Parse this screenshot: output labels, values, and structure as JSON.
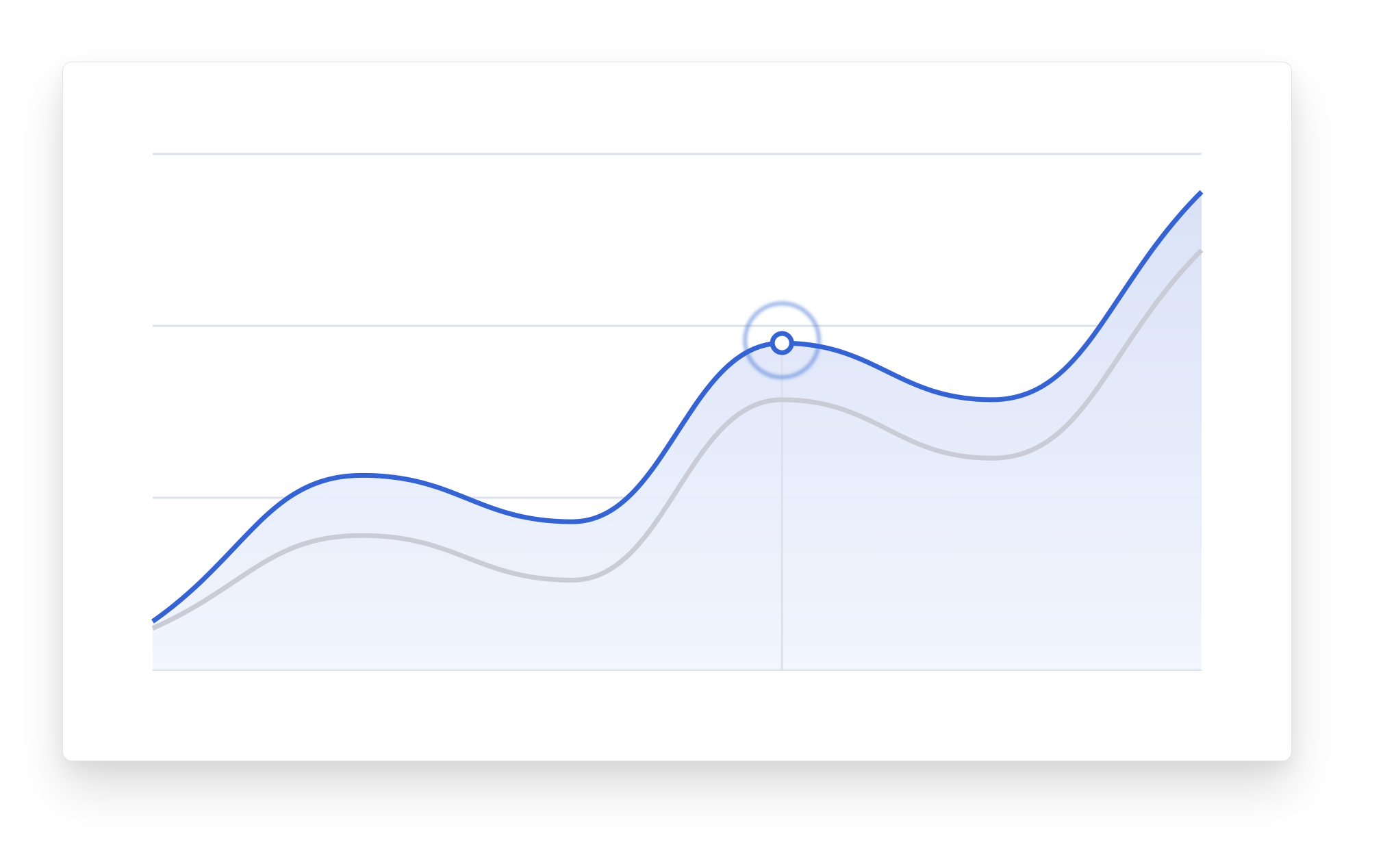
{
  "chart_data": {
    "type": "line",
    "title": "",
    "xlabel": "",
    "ylabel": "",
    "x": [
      0,
      1,
      2,
      3,
      4,
      5
    ],
    "ylim": [
      0,
      3
    ],
    "grid": true,
    "series": [
      {
        "values": [
          0.28,
          1.13,
          0.86,
          1.9,
          1.57,
          2.78
        ],
        "color": "#3563d1",
        "area_fill": true,
        "highlighted_index": 3
      },
      {
        "values": [
          0.24,
          0.78,
          0.52,
          1.57,
          1.23,
          2.44
        ],
        "color": "#c9ccd6",
        "area_fill": false
      }
    ],
    "highlight": {
      "series_index": 0,
      "x_index": 3,
      "crosshair": true
    }
  },
  "colors": {
    "accent": "#3563d1",
    "comparison": "#c9ccd6",
    "grid": "#dde1ec",
    "area_top": "#d8e0f6",
    "area_bottom": "#f1f5fe"
  }
}
